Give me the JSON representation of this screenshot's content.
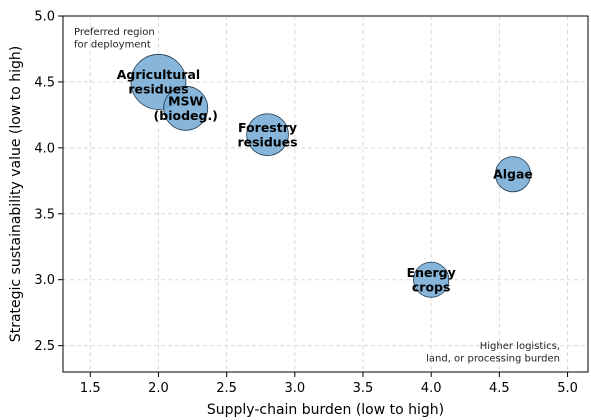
{
  "chart_data": {
    "type": "scatter",
    "xlabel": "Supply-chain burden (low to high)",
    "ylabel": "Strategic sustainability value (low to high)",
    "xlim": [
      1.3,
      5.15
    ],
    "ylim": [
      2.3,
      5.0
    ],
    "xticks": [
      "1.5",
      "2.0",
      "2.5",
      "3.0",
      "3.5",
      "4.0",
      "4.5",
      "5.0"
    ],
    "yticks": [
      "2.5",
      "3.0",
      "3.5",
      "4.0",
      "4.5",
      "5.0"
    ],
    "grid": true,
    "points": [
      {
        "label": [
          "Agricultural",
          "residues"
        ],
        "x": 2.0,
        "y": 4.5,
        "relative_size": 1.25
      },
      {
        "label": [
          "MSW",
          "(biodeg.)"
        ],
        "x": 2.2,
        "y": 4.3,
        "relative_size": 1.0
      },
      {
        "label": [
          "Forestry",
          "residues"
        ],
        "x": 2.8,
        "y": 4.1,
        "relative_size": 0.95
      },
      {
        "label": [
          "Algae"
        ],
        "x": 4.6,
        "y": 3.8,
        "relative_size": 0.8
      },
      {
        "label": [
          "Energy",
          "crops"
        ],
        "x": 4.0,
        "y": 3.0,
        "relative_size": 0.8
      }
    ],
    "marker_color": "#7aaed6",
    "marker_edge_color": "#1f3a52",
    "annotations": {
      "top_left": [
        "Preferred region",
        "for deployment"
      ],
      "bottom_right": [
        "Higher logistics,",
        "land, or processing burden"
      ]
    }
  }
}
